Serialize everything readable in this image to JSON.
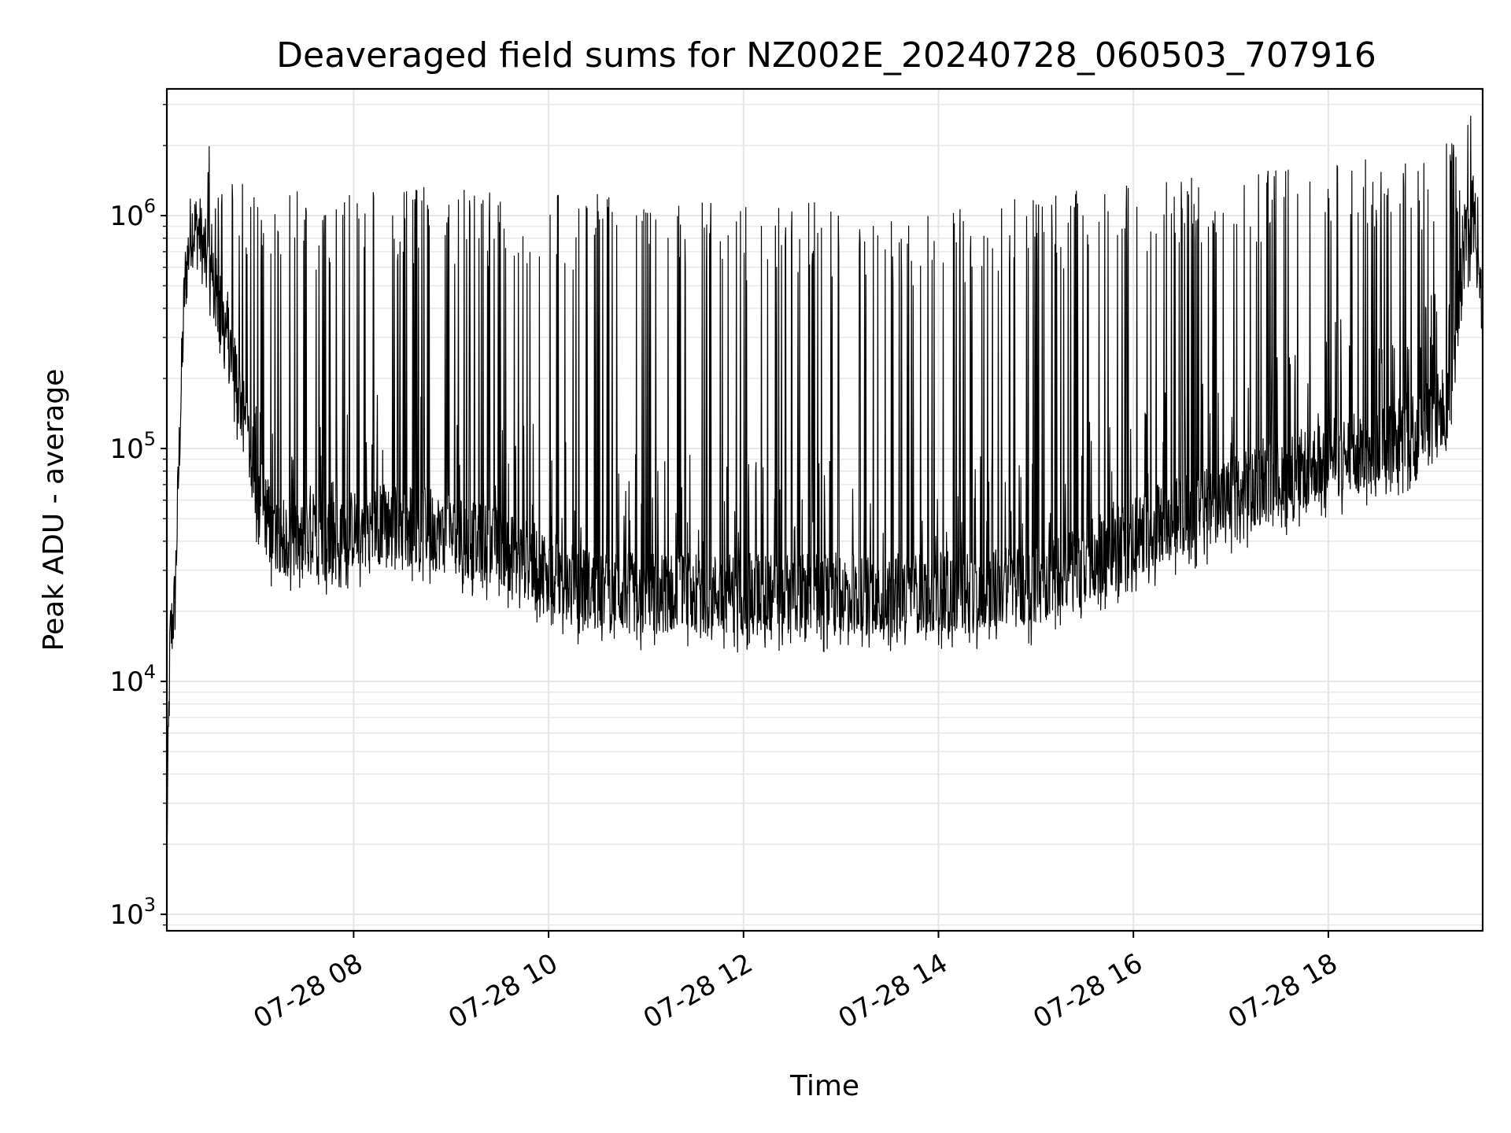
{
  "chart_data": {
    "type": "line",
    "title": "Deaveraged field sums for NZ002E_20240728_060503_707916",
    "xlabel": "Time",
    "ylabel": "Peak ADU - average",
    "x_scale": "time",
    "y_scale": "log",
    "xlim": [
      "2024-07-28 06:05",
      "2024-07-28 19:35"
    ],
    "ylim": [
      850,
      3500000
    ],
    "x_ticks": [
      "07-28 08",
      "07-28 10",
      "07-28 12",
      "07-28 14",
      "07-28 16",
      "07-28 18"
    ],
    "y_ticks": [
      {
        "base": "10",
        "exp": "3"
      },
      {
        "base": "10",
        "exp": "4"
      },
      {
        "base": "10",
        "exp": "5"
      },
      {
        "base": "10",
        "exp": "6"
      }
    ],
    "grid": true,
    "line_color": "#000000",
    "series": [
      {
        "name": "",
        "description_note": "",
        "baseline": {
          "x": [
            "2024-07-28 06:05",
            "2024-07-28 06:07",
            "2024-07-28 06:10",
            "2024-07-28 06:13",
            "2024-07-28 06:16",
            "2024-07-28 06:20",
            "2024-07-28 06:25",
            "2024-07-28 06:30",
            "2024-07-28 06:40",
            "2024-07-28 06:50",
            "2024-07-28 07:00",
            "2024-07-28 07:10",
            "2024-07-28 07:30",
            "2024-07-28 08:00",
            "2024-07-28 08:30",
            "2024-07-28 09:00",
            "2024-07-28 09:30",
            "2024-07-28 10:00",
            "2024-07-28 10:30",
            "2024-07-28 11:00",
            "2024-07-28 12:00",
            "2024-07-28 13:00",
            "2024-07-28 14:00",
            "2024-07-28 15:00",
            "2024-07-28 15:30",
            "2024-07-28 16:00",
            "2024-07-28 16:30",
            "2024-07-28 17:00",
            "2024-07-28 17:30",
            "2024-07-28 18:00",
            "2024-07-28 18:30",
            "2024-07-28 19:00",
            "2024-07-28 19:15",
            "2024-07-28 19:20",
            "2024-07-28 19:25",
            "2024-07-28 19:30",
            "2024-07-28 19:35"
          ],
          "y": [
            2000,
            15000,
            22000,
            120000,
            500000,
            900000,
            850000,
            600000,
            350000,
            170000,
            70000,
            45000,
            40000,
            45000,
            50000,
            42000,
            38000,
            30000,
            24000,
            24000,
            24000,
            24000,
            24000,
            26000,
            32000,
            42000,
            52000,
            62000,
            75000,
            90000,
            100000,
            130000,
            160000,
            400000,
            800000,
            1100000,
            400000
          ]
        },
        "spike_peak": {
          "x": [
            "2024-07-28 06:20",
            "2024-07-28 07:00",
            "2024-07-28 08:00",
            "2024-07-28 09:00",
            "2024-07-28 10:00",
            "2024-07-28 11:00",
            "2024-07-28 12:00",
            "2024-07-28 13:00",
            "2024-07-28 14:00",
            "2024-07-28 15:00",
            "2024-07-28 16:00",
            "2024-07-28 17:00",
            "2024-07-28 18:00",
            "2024-07-28 19:00",
            "2024-07-28 19:20"
          ],
          "y": [
            1700000,
            1300000,
            1300000,
            1350000,
            1350000,
            1150000,
            1150000,
            1150000,
            1100000,
            1200000,
            1400000,
            1550000,
            1700000,
            1900000,
            2400000
          ]
        },
        "dip_floor_ratio": 0.55
      }
    ]
  }
}
